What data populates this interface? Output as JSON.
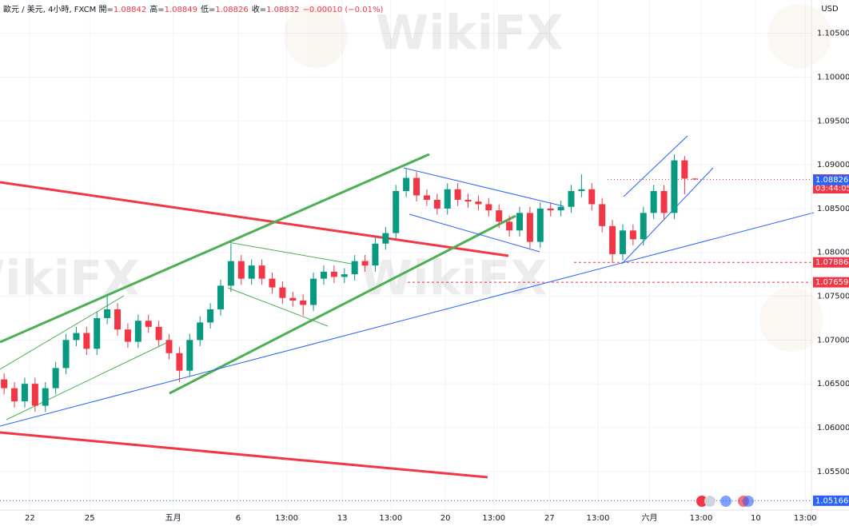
{
  "chart_data": {
    "type": "candlestick",
    "title": "歐元 / 美元, 4小時, FXCM",
    "ohlc_legend": [
      {
        "label": "開",
        "value": 1.08842
      },
      {
        "label": "高",
        "value": 1.08849
      },
      {
        "label": "低",
        "value": 1.08826
      },
      {
        "label": "收",
        "value": 1.08832
      }
    ],
    "change_text": "−0.00010 (−0.01%)",
    "currency": "USD",
    "watermark": "WikiFX",
    "up_color": "#089981",
    "down_color": "#f23645",
    "open": [
      1.0655,
      1.0645,
      1.063,
      1.065,
      1.0625,
      1.0645,
      1.0668,
      1.07,
      1.0708,
      1.069,
      1.0725,
      1.0735,
      1.0712,
      1.0698,
      1.0722,
      1.0715,
      1.07,
      1.0685,
      1.0665,
      1.07,
      1.072,
      1.0735,
      1.0762,
      1.079,
      1.077,
      1.0785,
      1.077,
      1.076,
      1.0748,
      1.0745,
      1.074,
      1.077,
      1.0778,
      1.0772,
      1.0775,
      1.079,
      1.0785,
      1.081,
      1.0822,
      1.087,
      1.0885,
      1.0865,
      1.086,
      1.085,
      1.0872,
      1.086,
      1.0858,
      1.0855,
      1.0848,
      1.0835,
      1.0825,
      1.0845,
      1.0812,
      1.085,
      1.0848,
      1.0852,
      1.087,
      1.0872,
      1.0855,
      1.083,
      1.0798,
      1.0825,
      1.0815,
      1.0845,
      1.087,
      1.0845,
      1.0905,
      1.08842
    ],
    "high": [
      1.0662,
      1.0652,
      1.0657,
      1.0657,
      1.0652,
      1.0675,
      1.0707,
      1.0715,
      1.0715,
      1.0732,
      1.075,
      1.0742,
      1.0719,
      1.0729,
      1.0729,
      1.0722,
      1.0707,
      1.0692,
      1.0707,
      1.0727,
      1.0742,
      1.0769,
      1.081,
      1.0797,
      1.0792,
      1.0792,
      1.0777,
      1.0767,
      1.0755,
      1.0752,
      1.0777,
      1.0785,
      1.0785,
      1.0782,
      1.0797,
      1.0797,
      1.0817,
      1.0829,
      1.0877,
      1.0895,
      1.0892,
      1.0872,
      1.0867,
      1.0879,
      1.0879,
      1.0867,
      1.0865,
      1.0862,
      1.0855,
      1.0842,
      1.0852,
      1.0852,
      1.0857,
      1.0857,
      1.0859,
      1.0877,
      1.0889,
      1.0879,
      1.0862,
      1.0837,
      1.0832,
      1.0832,
      1.0852,
      1.0877,
      1.0877,
      1.0912,
      1.091,
      1.08849
    ],
    "low": [
      1.0638,
      1.0623,
      1.0623,
      1.0618,
      1.0618,
      1.0638,
      1.0661,
      1.0693,
      1.0683,
      1.0683,
      1.0718,
      1.0705,
      1.0691,
      1.0691,
      1.0708,
      1.0693,
      1.0678,
      1.0652,
      1.0658,
      1.0693,
      1.0713,
      1.0728,
      1.0755,
      1.0763,
      1.0763,
      1.0763,
      1.0753,
      1.0741,
      1.0738,
      1.0728,
      1.0733,
      1.0763,
      1.0765,
      1.0765,
      1.0768,
      1.0778,
      1.0778,
      1.0803,
      1.0815,
      1.0863,
      1.0858,
      1.0853,
      1.0843,
      1.0843,
      1.0853,
      1.0851,
      1.0848,
      1.0841,
      1.0828,
      1.0818,
      1.0818,
      1.0805,
      1.0805,
      1.0841,
      1.0841,
      1.0845,
      1.0863,
      1.0848,
      1.0823,
      1.0788,
      1.0791,
      1.0808,
      1.0808,
      1.0838,
      1.0838,
      1.0838,
      1.0866,
      1.08826
    ],
    "close": [
      1.0645,
      1.063,
      1.065,
      1.0625,
      1.0645,
      1.0668,
      1.07,
      1.0708,
      1.069,
      1.0725,
      1.0735,
      1.0712,
      1.0698,
      1.0722,
      1.0715,
      1.07,
      1.0685,
      1.0665,
      1.07,
      1.072,
      1.0735,
      1.0762,
      1.079,
      1.077,
      1.0785,
      1.077,
      1.076,
      1.0748,
      1.0745,
      1.074,
      1.077,
      1.0778,
      1.0772,
      1.0775,
      1.079,
      1.0785,
      1.081,
      1.0822,
      1.087,
      1.0885,
      1.0865,
      1.086,
      1.085,
      1.0872,
      1.086,
      1.0858,
      1.0855,
      1.0848,
      1.0835,
      1.0825,
      1.0845,
      1.0812,
      1.085,
      1.0848,
      1.0852,
      1.087,
      1.0872,
      1.0855,
      1.083,
      1.0798,
      1.0825,
      1.0815,
      1.0845,
      1.087,
      1.0845,
      1.0905,
      1.08842,
      1.08832
    ],
    "xlim": [
      -0.4,
      78.3
    ],
    "xticks": [
      {
        "value": 2.5,
        "label": "22"
      },
      {
        "value": 8.3,
        "label": "25"
      },
      {
        "value": 16.4,
        "label": "五月"
      },
      {
        "value": 22.7,
        "label": "6"
      },
      {
        "value": 27.4,
        "label": "13:00"
      },
      {
        "value": 32.8,
        "label": "13"
      },
      {
        "value": 37.5,
        "label": "13:00"
      },
      {
        "value": 42.8,
        "label": "20"
      },
      {
        "value": 47.5,
        "label": "13:00"
      },
      {
        "value": 52.9,
        "label": "27"
      },
      {
        "value": 57.6,
        "label": "13:00"
      },
      {
        "value": 62.6,
        "label": "六月"
      },
      {
        "value": 67.6,
        "label": "13:00"
      },
      {
        "value": 72.9,
        "label": "10"
      },
      {
        "value": 77.7,
        "label": "13:00"
      }
    ],
    "ylim": [
      1.0506,
      1.1088
    ],
    "yticks": [
      {
        "value": 1.055,
        "label": "1.05500"
      },
      {
        "value": 1.06,
        "label": "1.06000"
      },
      {
        "value": 1.065,
        "label": "1.06500"
      },
      {
        "value": 1.07,
        "label": "1.07000"
      },
      {
        "value": 1.075,
        "label": "1.07500"
      },
      {
        "value": 1.08,
        "label": "1.08000"
      },
      {
        "value": 1.085,
        "label": "1.08500"
      },
      {
        "value": 1.09,
        "label": "1.09000"
      },
      {
        "value": 1.095,
        "label": "1.09500"
      },
      {
        "value": 1.1,
        "label": "1.10000"
      },
      {
        "value": 1.105,
        "label": "1.10500"
      }
    ],
    "grid": true,
    "price_tags": [
      {
        "value": 1.08832,
        "color": "#f23645"
      },
      {
        "value": 1.08826,
        "color": "#2962ff"
      },
      {
        "value": 1.07886,
        "color": "#f23645"
      },
      {
        "value": 1.07659,
        "color": "#f23645"
      },
      {
        "value": 1.05166,
        "color": "#2962ff"
      }
    ],
    "countdown": "03:44:05"
  }
}
